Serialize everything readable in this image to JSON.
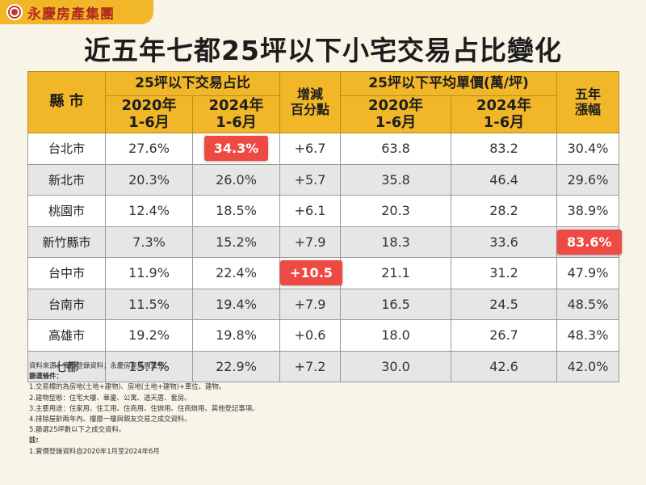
{
  "brand": {
    "name": "永慶房產集團"
  },
  "title": "近五年七都25坪以下小宅交易占比變化",
  "table": {
    "header": {
      "city": "縣 市",
      "ratio_group": "25坪以下交易占比",
      "change": "增減\n百分點",
      "price_group": "25坪以下平均單價(萬/坪)",
      "growth": "五年\n漲幅",
      "period_2020": "2020年\n1-6月",
      "period_2024": "2024年\n1-6月"
    },
    "rows": [
      {
        "city": "台北市",
        "ratio_2020": "27.6%",
        "ratio_2024": "34.3%",
        "change": "+6.7",
        "price_2020": "63.8",
        "price_2024": "83.2",
        "growth": "30.4%"
      },
      {
        "city": "新北市",
        "ratio_2020": "20.3%",
        "ratio_2024": "26.0%",
        "change": "+5.7",
        "price_2020": "35.8",
        "price_2024": "46.4",
        "growth": "29.6%"
      },
      {
        "city": "桃園市",
        "ratio_2020": "12.4%",
        "ratio_2024": "18.5%",
        "change": "+6.1",
        "price_2020": "20.3",
        "price_2024": "28.2",
        "growth": "38.9%"
      },
      {
        "city": "新竹縣市",
        "ratio_2020": "7.3%",
        "ratio_2024": "15.2%",
        "change": "+7.9",
        "price_2020": "18.3",
        "price_2024": "33.6",
        "growth": "83.6%"
      },
      {
        "city": "台中市",
        "ratio_2020": "11.9%",
        "ratio_2024": "22.4%",
        "change": "+10.5",
        "price_2020": "21.1",
        "price_2024": "31.2",
        "growth": "47.9%"
      },
      {
        "city": "台南市",
        "ratio_2020": "11.5%",
        "ratio_2024": "19.4%",
        "change": "+7.9",
        "price_2020": "16.5",
        "price_2024": "24.5",
        "growth": "48.5%"
      },
      {
        "city": "高雄市",
        "ratio_2020": "19.2%",
        "ratio_2024": "19.8%",
        "change": "+0.6",
        "price_2020": "18.0",
        "price_2024": "26.7",
        "growth": "48.3%"
      },
      {
        "city": "七都",
        "ratio_2020": "15.7%",
        "ratio_2024": "22.9%",
        "change": "+7.2",
        "price_2020": "30.0",
        "price_2024": "42.6",
        "growth": "42.0%"
      }
    ]
  },
  "notes": {
    "source": "資料來源：實價登錄資料；永慶房產集團彙整。",
    "filter_title": "篩選條件：",
    "filters": [
      "1.交易標的為房地(土地+建物)、房地(土地+建物)+車位、建物。",
      "2.建物型態：住宅大樓、華廈、公寓、透天厝、套房。",
      "3.主要用途：住家用、住工用、住商用、住辦用、住商辦用、其他登記事項。",
      "4.排除屋齡兩年內、樓層一樓與親友交易之成交資料。",
      "5.篩選25坪數以下之成交資料。"
    ],
    "remark_title": "註:",
    "remarks": [
      "1.實價登錄資料自2020年1月至2024年6月"
    ]
  },
  "colors": {
    "header_bg": "#f2b728",
    "highlight": "#ec4a42",
    "brand_red": "#b22a1e",
    "row_alt": "#e6e6e6"
  },
  "highlights": [
    {
      "row": 0,
      "column": "ratio_2024"
    },
    {
      "row": 3,
      "column": "growth"
    },
    {
      "row": 4,
      "column": "change"
    }
  ]
}
